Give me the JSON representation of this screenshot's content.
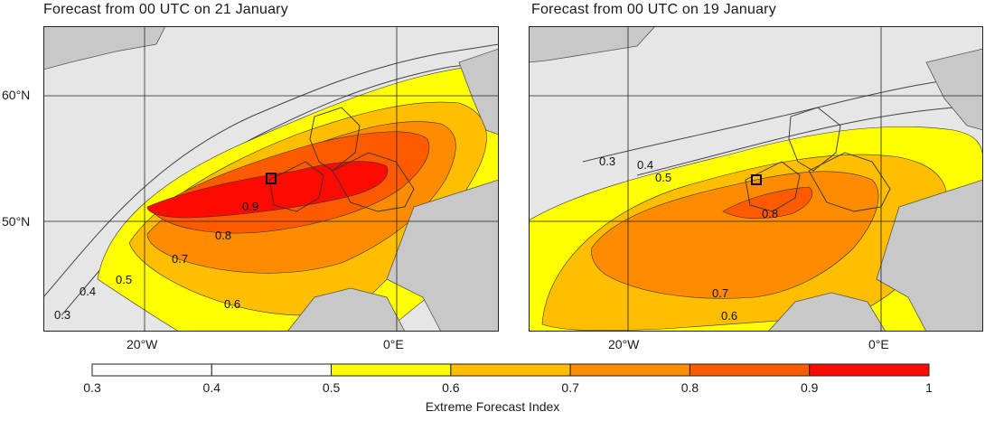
{
  "panels": [
    {
      "title": "Forecast from 00 UTC on 21 January"
    },
    {
      "title": "Forecast from 00 UTC on 19 January"
    }
  ],
  "axes": {
    "lat_labels": [
      "60°N",
      "50°N"
    ],
    "lon_labels": [
      "20°W",
      "0°E"
    ]
  },
  "contour_labels": {
    "left": [
      "0.9",
      "0.8",
      "0.7",
      "0.6",
      "0.5",
      "0.4",
      "0.3"
    ],
    "right": [
      "0.3",
      "0.4",
      "0.5",
      "0.8",
      "0.7",
      "0.6"
    ]
  },
  "colorbar": {
    "title": "Extreme Forecast Index",
    "ticks": [
      "0.3",
      "0.4",
      "0.5",
      "0.6",
      "0.7",
      "0.8",
      "0.9",
      "1"
    ],
    "colors": [
      "#ffffff",
      "#ffffff",
      "#ffff00",
      "#ffbe00",
      "#ff8c00",
      "#ff5a00",
      "#ff0a00"
    ]
  },
  "colors": {
    "sea": "#e6e6e6",
    "land": "#c8c8c8",
    "efi_05": "#ffff00",
    "efi_06": "#ffbe00",
    "efi_07": "#ff8c00",
    "efi_08": "#ff5a00",
    "efi_09": "#ff0a00"
  }
}
